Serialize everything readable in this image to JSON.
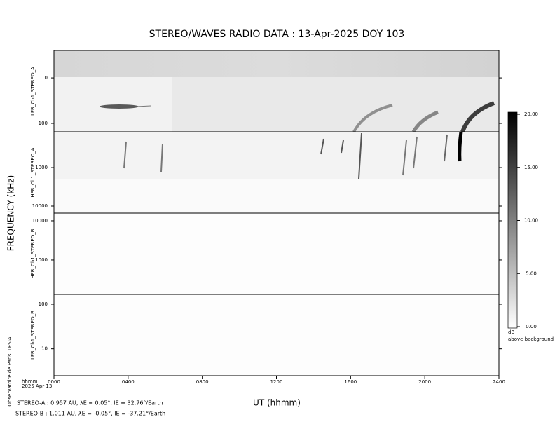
{
  "chart_data": [
    {
      "type": "spectrogram",
      "title": "STEREO/WAVES  RADIO  DATA : 13-Apr-2025  DOY 103",
      "ylabel": "LFR_Ch1_STEREO_A",
      "log_scale": true,
      "ylim": [
        2.5,
        153
      ],
      "yticks": [
        10,
        100
      ]
    },
    {
      "type": "spectrogram",
      "ylabel": "HFR_Ch1_STEREO_A",
      "log_scale": true,
      "ylim": [
        118,
        15200
      ],
      "yticks": [
        1000,
        10000
      ]
    },
    {
      "type": "spectrogram",
      "ylabel": "HFR_Ch1_STEREO_B",
      "log_scale": true,
      "ylim": [
        15700,
        133
      ],
      "yticks": [
        10000,
        1000
      ]
    },
    {
      "type": "spectrogram",
      "ylabel": "LFR_Ch1_STEREO_B",
      "xlabel": "UT (hhmm)",
      "log_scale": true,
      "ylim": [
        166,
        2.5
      ],
      "yticks": [
        100,
        10
      ],
      "xlim": [
        0,
        2400
      ],
      "xticks": [
        {
          "value": 0,
          "label": "0000"
        },
        {
          "value": 400,
          "label": "0400"
        },
        {
          "value": 800,
          "label": "0800"
        },
        {
          "value": 1200,
          "label": "1200"
        },
        {
          "value": 1600,
          "label": "1600"
        },
        {
          "value": 2000,
          "label": "2000"
        },
        {
          "value": 2400,
          "label": "2400"
        }
      ]
    }
  ],
  "frequency_label": "FREQUENCY (kHz)",
  "colorbar": {
    "lim": [
      0,
      20
    ],
    "unit": "dB",
    "caption": "above background",
    "ticks": [
      {
        "value": 0,
        "label": "0.00"
      },
      {
        "value": 5,
        "label": "5.00"
      },
      {
        "value": 10,
        "label": "10.00"
      },
      {
        "value": 15,
        "label": "15.00"
      },
      {
        "value": 20,
        "label": "20.00"
      }
    ]
  },
  "time_unit": "hhmm",
  "date": "2025 Apr 13",
  "credit": "Observatoire de Paris, LESIA",
  "footer": [
    "STEREO-A : 0.957 AU, λE = 0.05°, lE = 32.76°/Earth",
    "STEREO-B : 1.011 AU, λE = -0.05°, lE = -37.21°/Earth"
  ]
}
